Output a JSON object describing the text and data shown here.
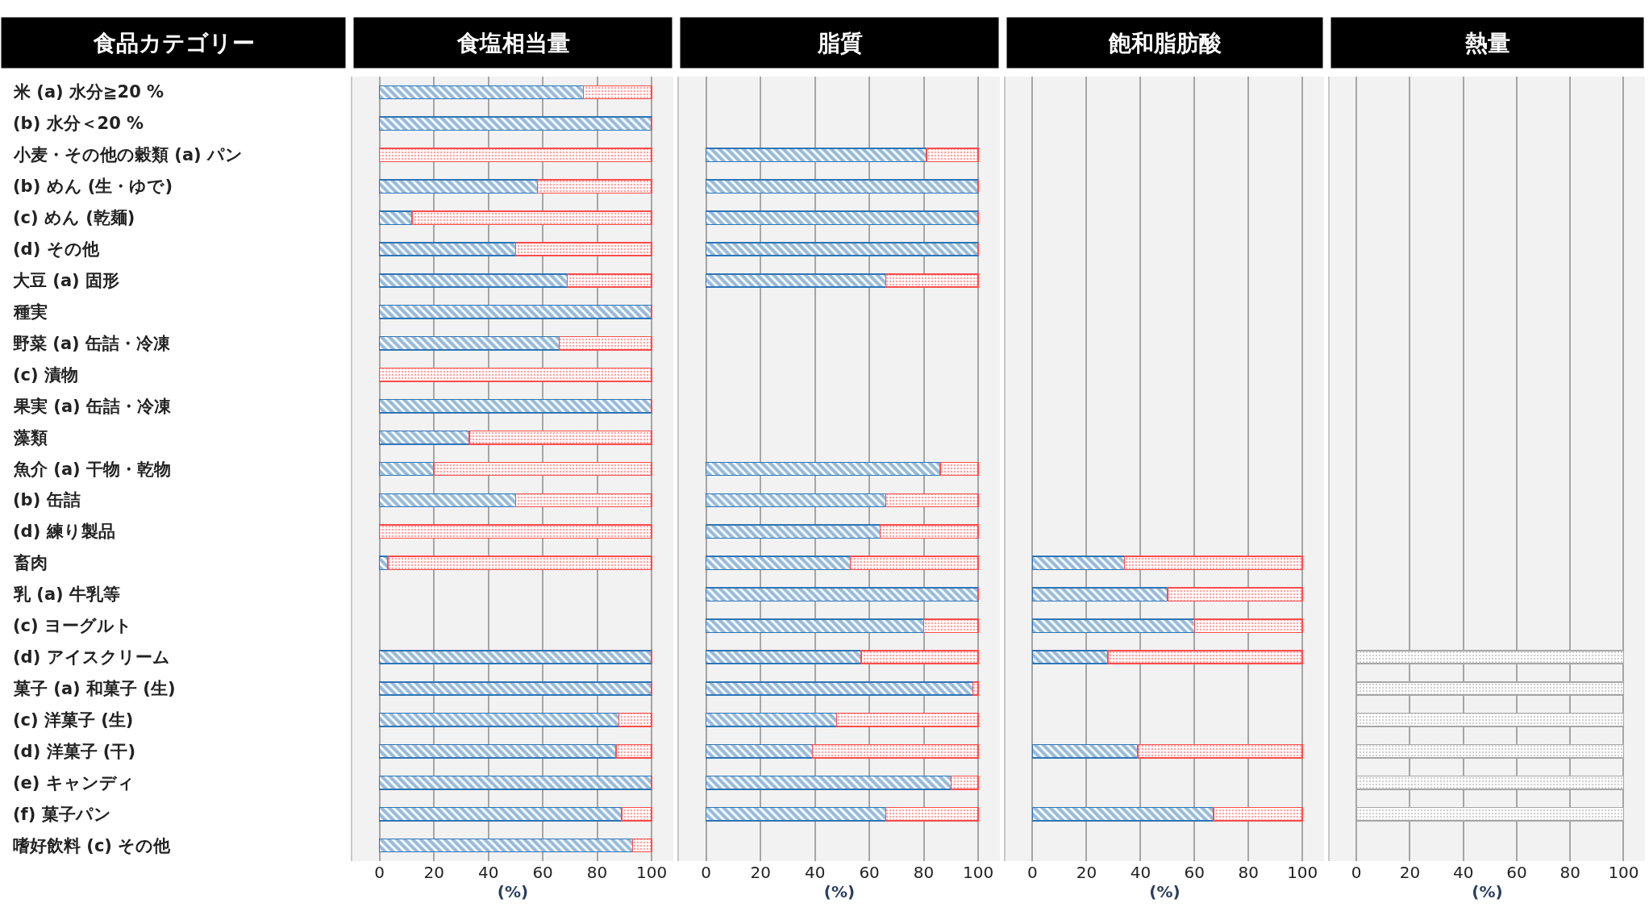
{
  "chart_data": [
    {
      "type": "bar",
      "orientation": "horizontal",
      "stacked": true,
      "title": "食塩相当量",
      "ylabel": "食品カテゴリー",
      "xlabel": "(%)",
      "grid": "x",
      "xlim": [
        -10,
        108
      ],
      "xticks": [
        0,
        20,
        40,
        60,
        80,
        100
      ],
      "categories": [
        "米 (a) 水分≧20 %",
        "(b) 水分＜20 %",
        "小麦・その他の穀類 (a) パン",
        "(b) めん (生・ゆで)",
        "(c) めん (乾麺)",
        "(d) その他",
        "大豆 (a) 固形",
        "種実",
        "野菜 (a) 缶詰・冷凍",
        "(c) 漬物",
        "果実 (a) 缶詰・冷凍",
        "藻類",
        "魚介 (a) 干物・乾物",
        "(b) 缶詰",
        "(d) 練り製品",
        "畜肉",
        "乳 (a) 牛乳等",
        "(c) ヨーグルト",
        "(d) アイスクリーム",
        "菓子 (a) 和菓子 (生)",
        "(c) 洋菓子 (生)",
        "(d) 洋菓子 (干)",
        "(e) キャンディ",
        "(f) 菓子パン",
        "嗜好飲料 (c) その他"
      ],
      "series": [
        {
          "color": "#2e75b6",
          "values": [
            75,
            100,
            0,
            58,
            12,
            50,
            69,
            100,
            66,
            0,
            100,
            33,
            20,
            50,
            0,
            3,
            null,
            null,
            100,
            100,
            88,
            87,
            100,
            89,
            93
          ]
        },
        {
          "color": "#ff4b4b",
          "values": [
            25,
            0,
            100,
            42,
            88,
            50,
            31,
            0,
            34,
            100,
            0,
            67,
            80,
            50,
            100,
            97,
            null,
            null,
            0,
            0,
            12,
            13,
            0,
            11,
            7
          ]
        }
      ]
    },
    {
      "type": "bar",
      "orientation": "horizontal",
      "stacked": true,
      "title": "脂質",
      "xlabel": "(%)",
      "grid": "x",
      "tick_labels": "x",
      "xlim": [
        -10,
        108
      ],
      "xticks": [
        0,
        20,
        40,
        60,
        80,
        100
      ],
      "categories": [
        null,
        null,
        null,
        null,
        null,
        null,
        null,
        null,
        null,
        null,
        null,
        null,
        null,
        null,
        null,
        null,
        null,
        null,
        null,
        null,
        null,
        null,
        null,
        null,
        null
      ],
      "series": [
        {
          "color": "#2e75b6",
          "values": [
            null,
            null,
            81,
            100,
            100,
            100,
            66,
            null,
            null,
            null,
            null,
            null,
            86,
            66,
            64,
            53,
            100,
            80,
            57,
            98,
            48,
            39,
            90,
            66,
            null
          ]
        },
        {
          "color": "#ff4b4b",
          "values": [
            null,
            null,
            19,
            0,
            0,
            0,
            34,
            null,
            null,
            null,
            null,
            null,
            14,
            34,
            36,
            47,
            0,
            20,
            43,
            2,
            52,
            61,
            10,
            34,
            null
          ]
        }
      ]
    },
    {
      "type": "bar",
      "orientation": "horizontal",
      "stacked": true,
      "title": "飽和脂肪酸",
      "xlabel": "(%)",
      "grid": "x",
      "tick_labels": "x",
      "xlim": [
        -10,
        108
      ],
      "xticks": [
        0,
        20,
        40,
        60,
        80,
        100
      ],
      "categories": [
        null,
        null,
        null,
        null,
        null,
        null,
        null,
        null,
        null,
        null,
        null,
        null,
        null,
        null,
        null,
        null,
        null,
        null,
        null,
        null,
        null,
        null,
        null,
        null,
        null
      ],
      "series": [
        {
          "color": "#2e75b6",
          "values": [
            null,
            null,
            null,
            null,
            null,
            null,
            null,
            null,
            null,
            null,
            null,
            null,
            null,
            null,
            null,
            34,
            50,
            60,
            28,
            null,
            null,
            39,
            null,
            67,
            null
          ]
        },
        {
          "color": "#ff4b4b",
          "values": [
            null,
            null,
            null,
            null,
            null,
            null,
            null,
            null,
            null,
            null,
            null,
            null,
            null,
            null,
            null,
            66,
            50,
            40,
            72,
            null,
            null,
            61,
            null,
            33,
            null
          ]
        }
      ]
    },
    {
      "type": "bar",
      "orientation": "horizontal",
      "stacked": true,
      "title": "熱量",
      "xlabel": "(%)",
      "grid": "x",
      "tick_labels": "x",
      "xlim": [
        -10,
        108
      ],
      "xticks": [
        0,
        20,
        40,
        60,
        80,
        100
      ],
      "categories": [
        null,
        null,
        null,
        null,
        null,
        null,
        null,
        null,
        null,
        null,
        null,
        null,
        null,
        null,
        null,
        null,
        null,
        null,
        null,
        null,
        null,
        null,
        null,
        null,
        null
      ],
      "series": [
        {
          "color": "#a6a6a6",
          "values": [
            null,
            null,
            null,
            null,
            null,
            null,
            null,
            null,
            null,
            null,
            null,
            null,
            null,
            null,
            null,
            null,
            null,
            null,
            100,
            100,
            100,
            100,
            100,
            100,
            null
          ]
        }
      ]
    }
  ]
}
